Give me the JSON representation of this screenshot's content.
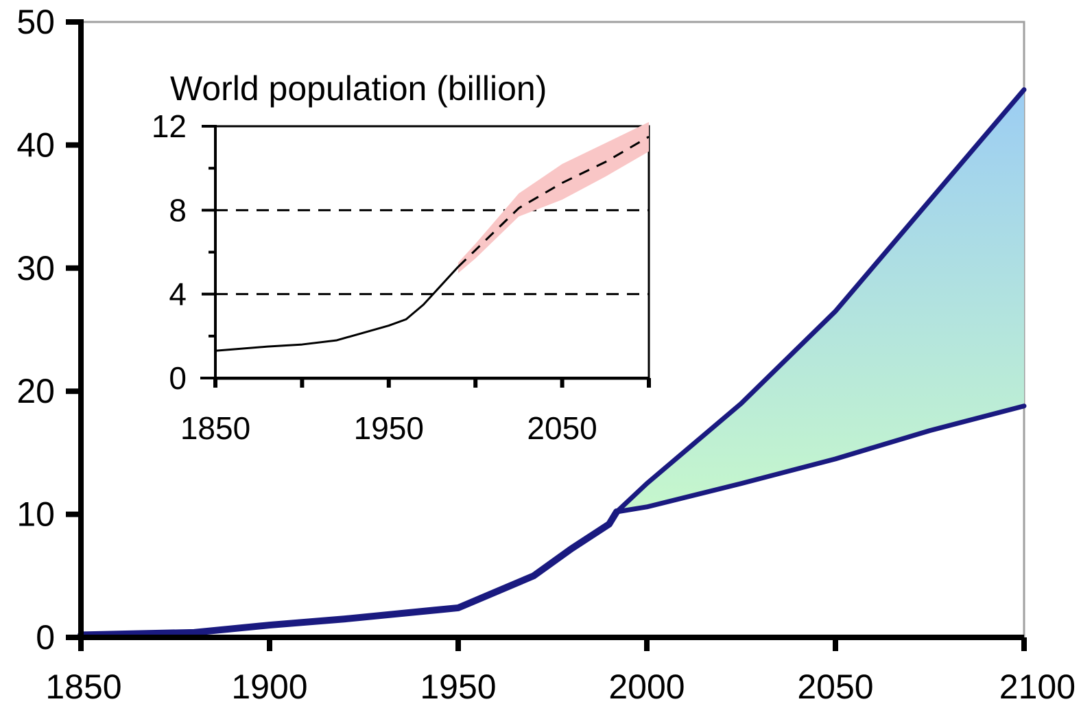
{
  "chart_data": [
    {
      "type": "area",
      "title": "",
      "xlabel": "",
      "ylabel": "",
      "xlim": [
        1850,
        2100
      ],
      "ylim": [
        0,
        50
      ],
      "x_ticks": [
        1850,
        1900,
        1950,
        2000,
        2050,
        2100
      ],
      "y_ticks": [
        0,
        10,
        20,
        30,
        40,
        50
      ],
      "grid": false,
      "colors": {
        "line": "#1a1a80",
        "fill_top": "#9ccdf3",
        "fill_bottom": "#c6f7cc"
      },
      "series": [
        {
          "values": [
            [
              1850,
              0.2
            ],
            [
              1880,
              0.4
            ],
            [
              1900,
              1.0
            ],
            [
              1920,
              1.5
            ],
            [
              1950,
              2.4
            ],
            [
              1960,
              3.7
            ],
            [
              1970,
              5.0
            ],
            [
              1980,
              7.2
            ],
            [
              1990,
              9.2
            ],
            [
              1992,
              10.2
            ]
          ]
        },
        {
          "values": [
            [
              1992,
              10.2
            ],
            [
              2000,
              12.5
            ],
            [
              2025,
              19.0
            ],
            [
              2050,
              26.5
            ],
            [
              2075,
              35.5
            ],
            [
              2100,
              44.5
            ]
          ]
        },
        {
          "values": [
            [
              1992,
              10.2
            ],
            [
              2000,
              10.6
            ],
            [
              2025,
              12.5
            ],
            [
              2050,
              14.5
            ],
            [
              2075,
              16.8
            ],
            [
              2100,
              18.8
            ]
          ]
        }
      ]
    },
    {
      "type": "line",
      "title": "World population (billion)",
      "xlabel": "",
      "ylabel": "",
      "xlim": [
        1850,
        2100
      ],
      "ylim": [
        0,
        12
      ],
      "x_ticks": [
        1850,
        1950,
        2050
      ],
      "y_ticks": [
        0,
        4,
        8,
        12
      ],
      "gridlines_y": [
        4,
        8
      ],
      "colors": {
        "line": "#000000",
        "band": "#f9c6c6"
      },
      "series": [
        {
          "values": [
            [
              1850,
              1.3
            ],
            [
              1880,
              1.5
            ],
            [
              1900,
              1.6
            ],
            [
              1920,
              1.8
            ],
            [
              1950,
              2.5
            ],
            [
              1960,
              2.8
            ],
            [
              1970,
              3.5
            ],
            [
              1980,
              4.4
            ],
            [
              1990,
              5.3
            ]
          ]
        },
        {
          "values": [
            [
              1990,
              5.3
            ],
            [
              2000,
              6.1
            ],
            [
              2025,
              8.1
            ],
            [
              2050,
              9.3
            ],
            [
              2075,
              10.3
            ],
            [
              2100,
              11.5
            ]
          ]
        }
      ],
      "band": {
        "x": [
          1990,
          2000,
          2025,
          2050,
          2075,
          2100
        ],
        "upper": [
          5.5,
          6.4,
          8.8,
          10.2,
          11.2,
          12.2
        ],
        "lower": [
          5.0,
          5.7,
          7.7,
          8.5,
          9.6,
          10.8
        ]
      }
    }
  ]
}
